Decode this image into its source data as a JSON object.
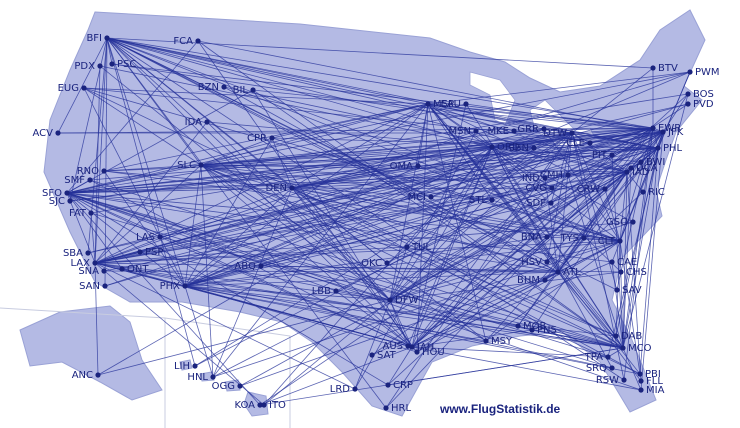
{
  "airports": [
    "BFI",
    "FCA",
    "PDX",
    "PSC",
    "EUG",
    "BZN",
    "BIL",
    "IDA",
    "ACV",
    "CPR",
    "MSP",
    "EAU",
    "MSN",
    "MKE",
    "GRR",
    "DTW",
    "ORD",
    "SBN",
    "CLE",
    "RNO",
    "SLC",
    "SMF",
    "SFO",
    "SJC",
    "OMA",
    "DEN",
    "PIT",
    "FAT",
    "MCI",
    "STL",
    "IND",
    "CMH",
    "CVG",
    "SDF",
    "CRW",
    "IAD",
    "DCA",
    "BWI",
    "PHL",
    "EWR",
    "JFK",
    "BOS",
    "PVD",
    "BTV",
    "PWM",
    "RIC",
    "LAS",
    "TUL",
    "OKC",
    "BNA",
    "TYS",
    "CLT",
    "GSO",
    "SBA",
    "LAX",
    "SNA",
    "ONT",
    "PSP",
    "SAN",
    "PHX",
    "ABQ",
    "LBB",
    "DFW",
    "HSV",
    "ATL",
    "BHM",
    "CAE",
    "CHS",
    "SAV",
    "MSY",
    "MOB",
    "PNS",
    "AUS",
    "IAH",
    "HOU",
    "SAT",
    "CRP",
    "LRD",
    "HRL",
    "DAB",
    "MCO",
    "TPA",
    "SRQ",
    "RSW",
    "PBI",
    "FLL",
    "MIA",
    "ANC",
    "LIH",
    "HNL",
    "OGG",
    "KOA",
    "ITO"
  ],
  "watermark": "www.FlugStatistik.de"
}
